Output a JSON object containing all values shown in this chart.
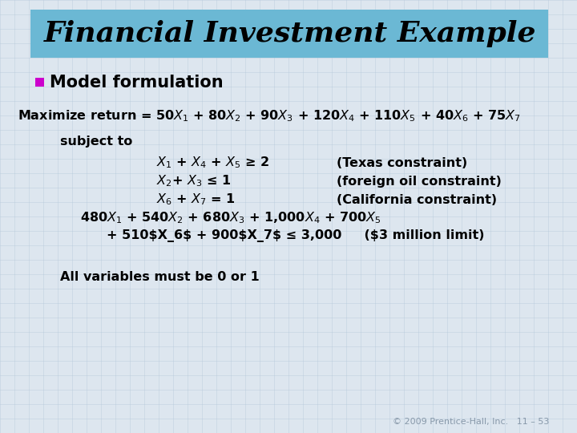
{
  "title": "Financial Investment Example",
  "title_bg_color": "#6BB8D4",
  "title_font_size": 26,
  "bg_color": "#DDE6EF",
  "bullet_color": "#CC00CC",
  "bullet_text": "Model formulation",
  "bullet_font_size": 15,
  "footer_text": "© 2009 Prentice-Hall, Inc.   11 – 53",
  "footer_font_size": 8,
  "grid_color": "#B0C4D8",
  "grid_step": 18,
  "grid_alpha": 0.5
}
